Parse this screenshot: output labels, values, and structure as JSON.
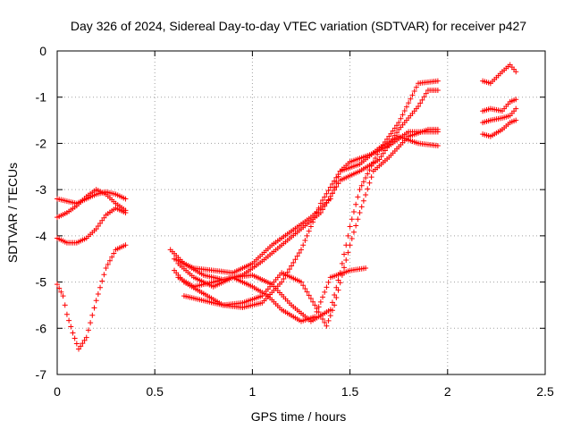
{
  "chart_data": {
    "type": "scatter",
    "title": "Day 326 of 2024, Sidereal Day-to-day VTEC variation (SDTVAR) for receiver p427",
    "xlabel": "GPS time / hours",
    "ylabel": "SDTVAR / TECUs",
    "xlim": [
      0,
      2.5
    ],
    "ylim": [
      -7,
      0
    ],
    "xticks": [
      0,
      0.5,
      1,
      1.5,
      2,
      2.5
    ],
    "xtick_labels": [
      "0",
      "0.5",
      "1",
      "1.5",
      "2",
      "2.5"
    ],
    "yticks": [
      0,
      -1,
      -2,
      -3,
      -4,
      -5,
      -6,
      -7
    ],
    "ytick_labels": [
      "0",
      "-1",
      "-2",
      "-3",
      "-4",
      "-5",
      "-6",
      "-7"
    ],
    "grid": true,
    "marker": "plus",
    "color": "#ff0000",
    "series": [
      {
        "name": "s1",
        "points": [
          [
            0.0,
            -3.2
          ],
          [
            0.05,
            -3.25
          ],
          [
            0.1,
            -3.3
          ],
          [
            0.15,
            -3.2
          ],
          [
            0.2,
            -3.1
          ],
          [
            0.25,
            -3.05
          ],
          [
            0.3,
            -3.1
          ],
          [
            0.35,
            -3.2
          ]
        ]
      },
      {
        "name": "s2",
        "points": [
          [
            0.0,
            -3.6
          ],
          [
            0.05,
            -3.5
          ],
          [
            0.1,
            -3.35
          ],
          [
            0.15,
            -3.15
          ],
          [
            0.2,
            -3.0
          ],
          [
            0.25,
            -3.1
          ],
          [
            0.3,
            -3.3
          ],
          [
            0.35,
            -3.45
          ]
        ]
      },
      {
        "name": "s3",
        "points": [
          [
            0.0,
            -4.05
          ],
          [
            0.05,
            -4.15
          ],
          [
            0.1,
            -4.15
          ],
          [
            0.15,
            -4.05
          ],
          [
            0.2,
            -3.85
          ],
          [
            0.25,
            -3.55
          ],
          [
            0.3,
            -3.4
          ],
          [
            0.35,
            -3.5
          ]
        ]
      },
      {
        "name": "s4",
        "points": [
          [
            0.0,
            -5.05
          ],
          [
            0.03,
            -5.3
          ],
          [
            0.05,
            -5.7
          ],
          [
            0.08,
            -6.1
          ],
          [
            0.11,
            -6.45
          ],
          [
            0.15,
            -6.2
          ],
          [
            0.2,
            -5.4
          ],
          [
            0.25,
            -4.7
          ],
          [
            0.3,
            -4.3
          ],
          [
            0.35,
            -4.2
          ]
        ]
      },
      {
        "name": "s5",
        "points": [
          [
            0.58,
            -4.3
          ],
          [
            0.65,
            -4.6
          ],
          [
            0.75,
            -4.85
          ],
          [
            0.85,
            -4.95
          ],
          [
            0.95,
            -4.85
          ],
          [
            1.05,
            -4.55
          ],
          [
            1.15,
            -4.2
          ],
          [
            1.25,
            -3.85
          ],
          [
            1.35,
            -3.5
          ],
          [
            1.45,
            -2.8
          ],
          [
            1.55,
            -2.6
          ],
          [
            1.65,
            -2.35
          ],
          [
            1.75,
            -1.7
          ],
          [
            1.85,
            -1.2
          ],
          [
            1.9,
            -0.85
          ],
          [
            1.95,
            -0.85
          ]
        ]
      },
      {
        "name": "s6",
        "points": [
          [
            0.6,
            -4.5
          ],
          [
            0.7,
            -4.7
          ],
          [
            0.8,
            -4.75
          ],
          [
            0.9,
            -4.8
          ],
          [
            1.0,
            -4.6
          ],
          [
            1.1,
            -4.2
          ],
          [
            1.2,
            -3.9
          ],
          [
            1.3,
            -3.6
          ],
          [
            1.4,
            -3.2
          ],
          [
            1.45,
            -2.6
          ],
          [
            1.5,
            -2.4
          ],
          [
            1.6,
            -2.25
          ],
          [
            1.7,
            -2.05
          ],
          [
            1.8,
            -1.75
          ],
          [
            1.9,
            -1.75
          ],
          [
            1.95,
            -1.75
          ]
        ]
      },
      {
        "name": "s7",
        "points": [
          [
            0.6,
            -4.75
          ],
          [
            0.65,
            -5.0
          ],
          [
            0.75,
            -5.25
          ],
          [
            0.85,
            -5.5
          ],
          [
            0.95,
            -5.55
          ],
          [
            1.05,
            -5.45
          ],
          [
            1.15,
            -5.0
          ],
          [
            1.25,
            -4.3
          ],
          [
            1.35,
            -3.3
          ],
          [
            1.45,
            -2.6
          ],
          [
            1.55,
            -2.45
          ],
          [
            1.65,
            -2.1
          ],
          [
            1.75,
            -1.85
          ],
          [
            1.85,
            -2.0
          ],
          [
            1.95,
            -2.05
          ]
        ]
      },
      {
        "name": "s8",
        "points": [
          [
            0.62,
            -4.6
          ],
          [
            0.7,
            -4.9
          ],
          [
            0.8,
            -5.1
          ],
          [
            0.9,
            -4.9
          ],
          [
            1.0,
            -4.85
          ],
          [
            1.1,
            -5.05
          ],
          [
            1.2,
            -5.5
          ],
          [
            1.3,
            -5.85
          ],
          [
            1.4,
            -5.6
          ],
          [
            1.45,
            -4.8
          ],
          [
            1.5,
            -3.8
          ],
          [
            1.55,
            -3.0
          ],
          [
            1.65,
            -2.15
          ],
          [
            1.75,
            -1.55
          ],
          [
            1.85,
            -0.7
          ],
          [
            1.95,
            -0.65
          ]
        ]
      },
      {
        "name": "s9",
        "points": [
          [
            0.62,
            -4.9
          ],
          [
            0.7,
            -5.1
          ],
          [
            0.8,
            -5.0
          ],
          [
            0.9,
            -4.9
          ],
          [
            1.0,
            -5.1
          ],
          [
            1.08,
            -5.3
          ],
          [
            1.15,
            -5.6
          ],
          [
            1.25,
            -5.85
          ],
          [
            1.32,
            -5.75
          ],
          [
            1.4,
            -4.9
          ],
          [
            1.5,
            -4.75
          ],
          [
            1.58,
            -4.7
          ]
        ]
      },
      {
        "name": "s10",
        "points": [
          [
            0.65,
            -5.3
          ],
          [
            0.75,
            -5.4
          ],
          [
            0.85,
            -5.5
          ],
          [
            0.95,
            -5.45
          ],
          [
            1.05,
            -5.3
          ],
          [
            1.15,
            -4.8
          ],
          [
            1.25,
            -5.0
          ],
          [
            1.32,
            -5.5
          ],
          [
            1.38,
            -5.95
          ],
          [
            1.42,
            -5.5
          ],
          [
            1.5,
            -4.2
          ],
          [
            1.55,
            -3.5
          ],
          [
            1.62,
            -2.6
          ],
          [
            1.7,
            -2.3
          ],
          [
            1.8,
            -1.85
          ],
          [
            1.9,
            -1.7
          ],
          [
            1.95,
            -1.7
          ]
        ]
      },
      {
        "name": "s11",
        "points": [
          [
            2.18,
            -0.65
          ],
          [
            2.22,
            -0.7
          ],
          [
            2.28,
            -0.45
          ],
          [
            2.32,
            -0.3
          ],
          [
            2.35,
            -0.45
          ]
        ]
      },
      {
        "name": "s12",
        "points": [
          [
            2.18,
            -1.3
          ],
          [
            2.22,
            -1.25
          ],
          [
            2.28,
            -1.3
          ],
          [
            2.32,
            -1.1
          ],
          [
            2.35,
            -1.05
          ]
        ]
      },
      {
        "name": "s13",
        "points": [
          [
            2.18,
            -1.55
          ],
          [
            2.22,
            -1.5
          ],
          [
            2.28,
            -1.45
          ],
          [
            2.32,
            -1.4
          ],
          [
            2.35,
            -1.25
          ]
        ]
      },
      {
        "name": "s14",
        "points": [
          [
            2.18,
            -1.8
          ],
          [
            2.22,
            -1.85
          ],
          [
            2.28,
            -1.7
          ],
          [
            2.32,
            -1.55
          ],
          [
            2.35,
            -1.5
          ]
        ]
      }
    ]
  }
}
